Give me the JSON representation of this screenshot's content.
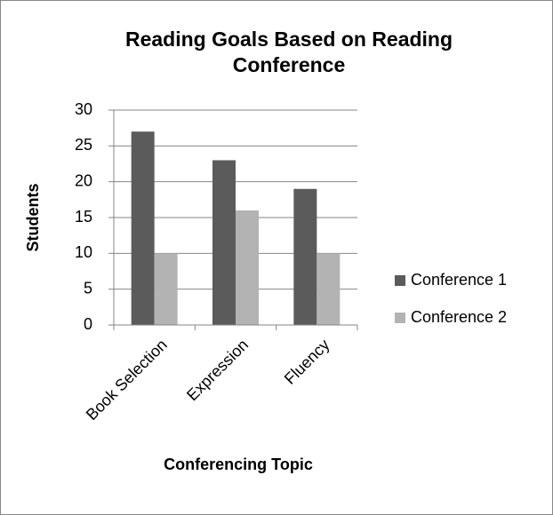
{
  "chart_data": {
    "type": "bar",
    "title": "Reading Goals Based on Reading Conference",
    "x_label": "Conferencing Topic",
    "y_label": "Students",
    "categories": [
      "Book Selection",
      "Expression",
      "Fluency"
    ],
    "series": [
      {
        "name": "Conference 1",
        "color": "#5b5b5b",
        "values": [
          27,
          23,
          19
        ]
      },
      {
        "name": "Conference 2",
        "color": "#b3b3b3",
        "values": [
          10,
          16,
          10
        ]
      }
    ],
    "ylim": [
      0,
      30
    ],
    "yticks": [
      0,
      5,
      10,
      15,
      20,
      25,
      30
    ],
    "grid": true,
    "legend": "right"
  }
}
